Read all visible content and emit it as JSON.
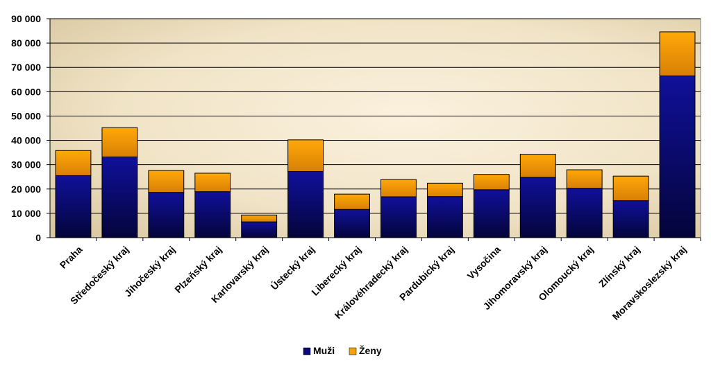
{
  "chart_data": {
    "type": "bar",
    "stacked": true,
    "categories": [
      "Praha",
      "Středočeský kraj",
      "Jihočeský kraj",
      "Plzeňský kraj",
      "Karlovarský kraj",
      "Ústecký kraj",
      "Liberecký kraj",
      "Královéhradecký kraj",
      "Pardubický kraj",
      "Vysočina",
      "Jihomoravský kraj",
      "Olomoucký kraj",
      "Zlínský kraj",
      "Moravskoslezský kraj"
    ],
    "series": [
      {
        "name": "Muži",
        "color": "#0a0a7a",
        "values": [
          25500,
          33200,
          18600,
          18900,
          6500,
          27200,
          11600,
          16800,
          16900,
          19700,
          24800,
          20300,
          15200,
          66500
        ]
      },
      {
        "name": "Ženy",
        "color": "#f5a20a",
        "values": [
          10300,
          12000,
          9000,
          7600,
          2800,
          13000,
          6300,
          7100,
          5500,
          6300,
          9500,
          7600,
          10100,
          18100
        ]
      }
    ],
    "y_ticks": [
      "0",
      "10 000",
      "20 000",
      "30 000",
      "40 000",
      "50 000",
      "60 000",
      "70 000",
      "80 000",
      "90 000"
    ],
    "ylim": [
      0,
      90000
    ],
    "grid": true,
    "legend_position": "bottom",
    "title": "",
    "xlabel": "",
    "ylabel": ""
  }
}
